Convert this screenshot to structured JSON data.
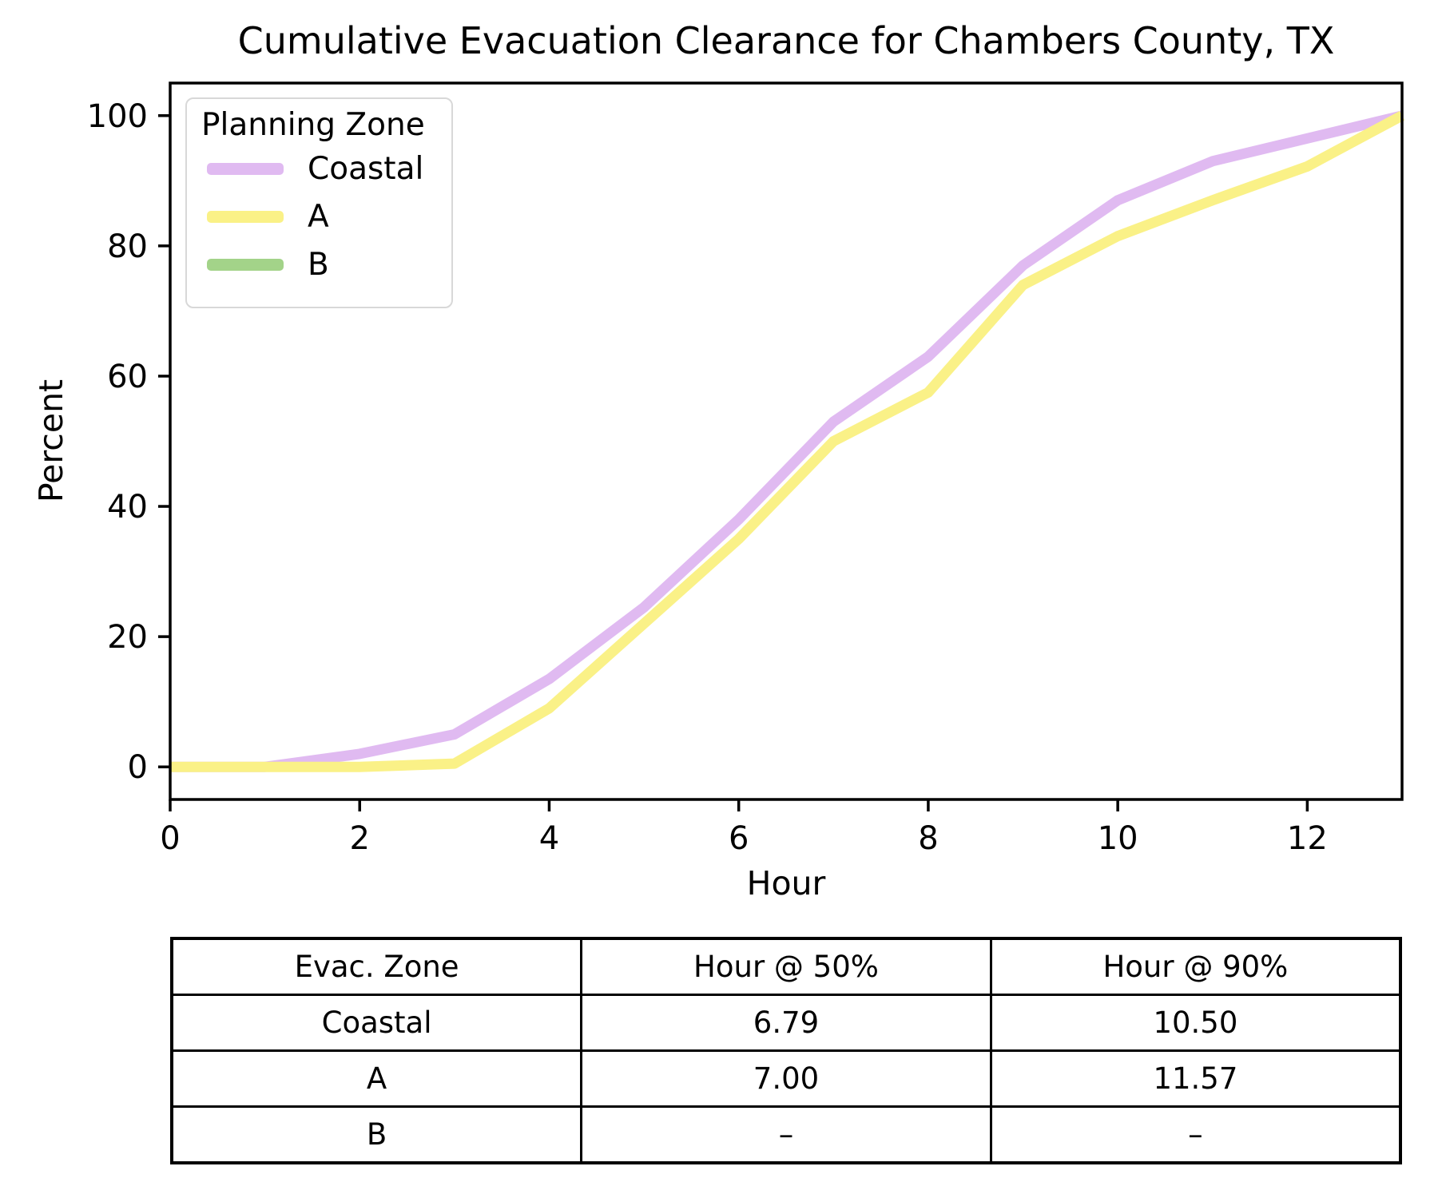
{
  "title": "Cumulative Evacuation Clearance for Chambers County, TX",
  "legend": {
    "title": "Planning Zone",
    "entries": [
      {
        "label": "Coastal",
        "color": "#e0baf1"
      },
      {
        "label": "A",
        "color": "#faf187"
      },
      {
        "label": "B",
        "color": "#a3d389"
      }
    ]
  },
  "axes": {
    "xlabel": "Hour",
    "ylabel": "Percent"
  },
  "chart_data": {
    "type": "line",
    "title": "Cumulative Evacuation Clearance for Chambers County, TX",
    "xlabel": "Hour",
    "ylabel": "Percent",
    "xlim": [
      0,
      13
    ],
    "ylim": [
      -5,
      105
    ],
    "xticks": [
      0,
      2,
      4,
      6,
      8,
      10,
      12
    ],
    "yticks": [
      0,
      20,
      40,
      60,
      80,
      100
    ],
    "grid": false,
    "legend_position": "upper left",
    "legend_title": "Planning Zone",
    "x": [
      0,
      1,
      2,
      3,
      4,
      5,
      6,
      7,
      8,
      9,
      10,
      11,
      12,
      13
    ],
    "series": [
      {
        "name": "Coastal",
        "color": "#e0baf1",
        "values": [
          0,
          0,
          2,
          5,
          13.5,
          24.5,
          38,
          53,
          63,
          77,
          87,
          93,
          96.5,
          100
        ]
      },
      {
        "name": "A",
        "color": "#faf187",
        "values": [
          0,
          0,
          0,
          0.5,
          9,
          22,
          35,
          50,
          57.5,
          74,
          81.5,
          87,
          92.2,
          100
        ]
      },
      {
        "name": "B",
        "color": "#a3d389",
        "values": []
      }
    ]
  },
  "table": {
    "headers": [
      "Evac. Zone",
      "Hour @ 50%",
      "Hour @ 90%"
    ],
    "rows": [
      [
        "Coastal",
        "6.79",
        "10.50"
      ],
      [
        "A",
        "7.00",
        "11.57"
      ],
      [
        "B",
        "–",
        "–"
      ]
    ]
  }
}
